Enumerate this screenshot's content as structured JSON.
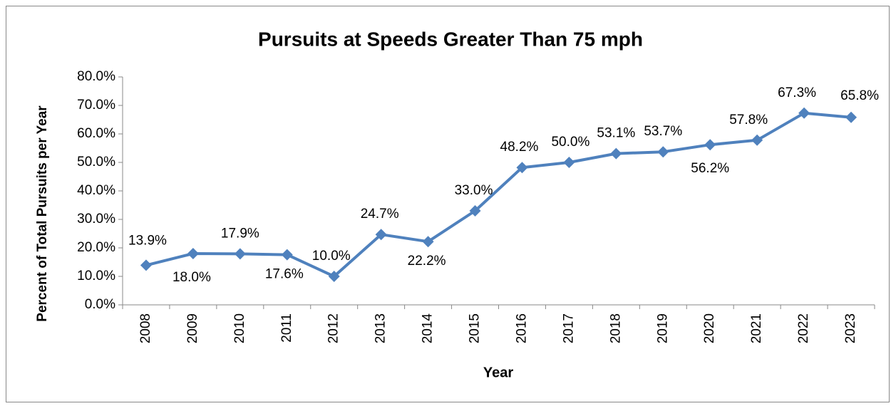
{
  "chart_data": {
    "type": "line",
    "title": "Pursuits at Speeds Greater Than 75 mph",
    "x_label": "Year",
    "y_label": "Percent of Total Pursuits per Year",
    "categories": [
      "2008",
      "2009",
      "2010",
      "2011",
      "2012",
      "2013",
      "2014",
      "2015",
      "2016",
      "2017",
      "2018",
      "2019",
      "2020",
      "2021",
      "2022",
      "2023"
    ],
    "series": [
      {
        "name": "Pursuits at Speeds Greater Than 75 mph",
        "color": "#4f81bd",
        "values": [
          13.9,
          18.0,
          17.9,
          17.6,
          10.0,
          24.7,
          22.2,
          33.0,
          48.2,
          50.0,
          53.1,
          53.7,
          56.2,
          57.8,
          67.3,
          65.8
        ],
        "value_labels": [
          "13.9%",
          "18.0%",
          "17.9%",
          "17.6%",
          "10.0%",
          "24.7%",
          "22.2%",
          "33.0%",
          "48.2%",
          "50.0%",
          "53.1%",
          "53.7%",
          "56.2%",
          "57.8%",
          "67.3%",
          "65.8%"
        ]
      }
    ],
    "ylim": [
      0,
      80
    ],
    "yticks": [
      {
        "value": 0,
        "label": "0.0%"
      },
      {
        "value": 10,
        "label": "10.0%"
      },
      {
        "value": 20,
        "label": "20.0%"
      },
      {
        "value": 30,
        "label": "30.0%"
      },
      {
        "value": 40,
        "label": "40.0%"
      },
      {
        "value": 50,
        "label": "50.0%"
      },
      {
        "value": 60,
        "label": "60.0%"
      },
      {
        "value": 70,
        "label": "70.0%"
      },
      {
        "value": 80,
        "label": "80.0%"
      }
    ],
    "grid": false
  }
}
